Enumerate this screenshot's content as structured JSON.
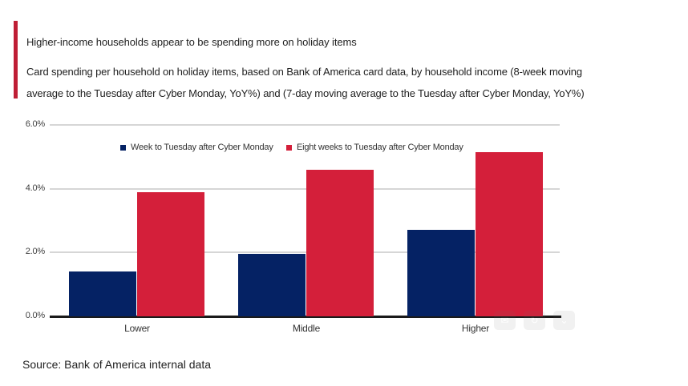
{
  "header": {
    "accent_color": "#bf1e35"
  },
  "chart_data": {
    "type": "bar",
    "title": "Higher-income households appear to be spending more on holiday items",
    "subtitle_lines": [
      "Card spending per household on holiday items, based on Bank of America card data, by household income (8-week moving",
      "average to the Tuesday after Cyber Monday, YoY%) and (7-day moving average to the Tuesday after Cyber Monday, YoY%)"
    ],
    "categories": [
      "Lower",
      "Middle",
      "Higher"
    ],
    "series": [
      {
        "name": "Week to Tuesday after Cyber Monday",
        "color": "#052264",
        "values": [
          1.4,
          1.95,
          2.7
        ]
      },
      {
        "name": "Eight weeks to Tuesday after Cyber Monday",
        "color": "#d41f3a",
        "values": [
          3.9,
          4.6,
          5.15
        ]
      }
    ],
    "xlabel": "",
    "ylabel": "",
    "ylim": [
      0,
      6
    ],
    "ytick_values": [
      0,
      2,
      4,
      6
    ],
    "ytick_labels": [
      "0.0%",
      "2.0%",
      "4.0%",
      "6.0%"
    ],
    "grid": true,
    "legend_position": "top"
  },
  "footer": {
    "source": "Source: Bank of America internal data"
  }
}
